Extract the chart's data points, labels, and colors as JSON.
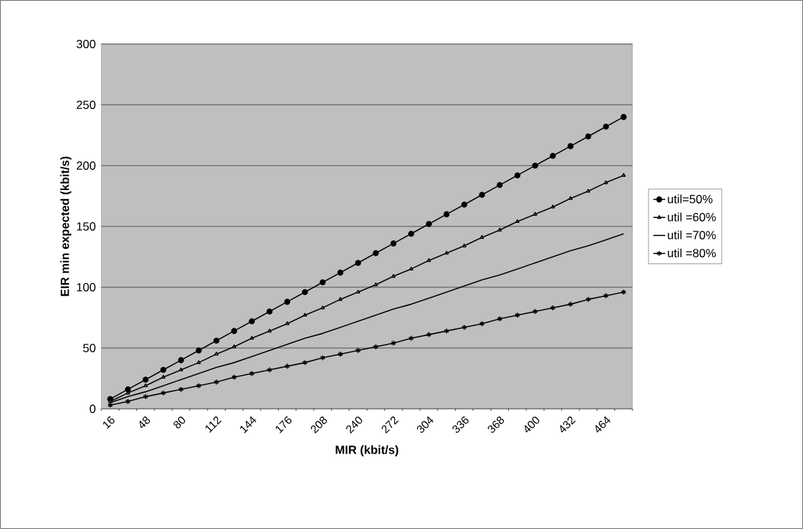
{
  "chart_data": {
    "type": "line",
    "xlabel": "MIR (kbit/s)",
    "ylabel": "EIR min expected (kbit/s)",
    "categories": [
      "16",
      null,
      "48",
      null,
      "80",
      null,
      "112",
      null,
      "144",
      null,
      "176",
      null,
      "208",
      null,
      "240",
      null,
      "272",
      null,
      "304",
      null,
      "336",
      null,
      "368",
      null,
      "400",
      null,
      "432",
      null,
      "464",
      null
    ],
    "series": [
      {
        "name": "util=50%",
        "color": "#000000",
        "marker": "circle",
        "values": [
          8,
          16,
          24,
          32,
          40,
          48,
          56,
          64,
          72,
          80,
          88,
          96,
          104,
          112,
          120,
          128,
          136,
          144,
          152,
          160,
          168,
          176,
          184,
          192,
          200,
          208,
          216,
          224,
          232,
          240
        ]
      },
      {
        "name": "util =60%",
        "color": "#000000",
        "marker": "triangle",
        "values": [
          6,
          13,
          19,
          26,
          32,
          38,
          45,
          51,
          58,
          64,
          70,
          77,
          83,
          90,
          96,
          102,
          109,
          115,
          122,
          128,
          134,
          141,
          147,
          154,
          160,
          166,
          173,
          179,
          186,
          192
        ]
      },
      {
        "name": "util =70%",
        "color": "#000000",
        "marker": "none",
        "values": [
          5,
          10,
          14,
          19,
          24,
          29,
          34,
          38,
          43,
          48,
          53,
          58,
          62,
          67,
          72,
          77,
          82,
          86,
          91,
          96,
          101,
          106,
          110,
          115,
          120,
          125,
          130,
          134,
          139,
          144
        ]
      },
      {
        "name": "util =80%",
        "color": "#000000",
        "marker": "cross",
        "values": [
          3,
          6,
          10,
          13,
          16,
          19,
          22,
          26,
          29,
          32,
          35,
          38,
          42,
          45,
          48,
          51,
          54,
          58,
          61,
          64,
          67,
          70,
          74,
          77,
          80,
          83,
          86,
          90,
          93,
          96
        ]
      }
    ],
    "ylim": [
      0,
      300
    ],
    "yticks": [
      0,
      50,
      100,
      150,
      200,
      250,
      300
    ],
    "grid": "y",
    "legend": "right"
  }
}
